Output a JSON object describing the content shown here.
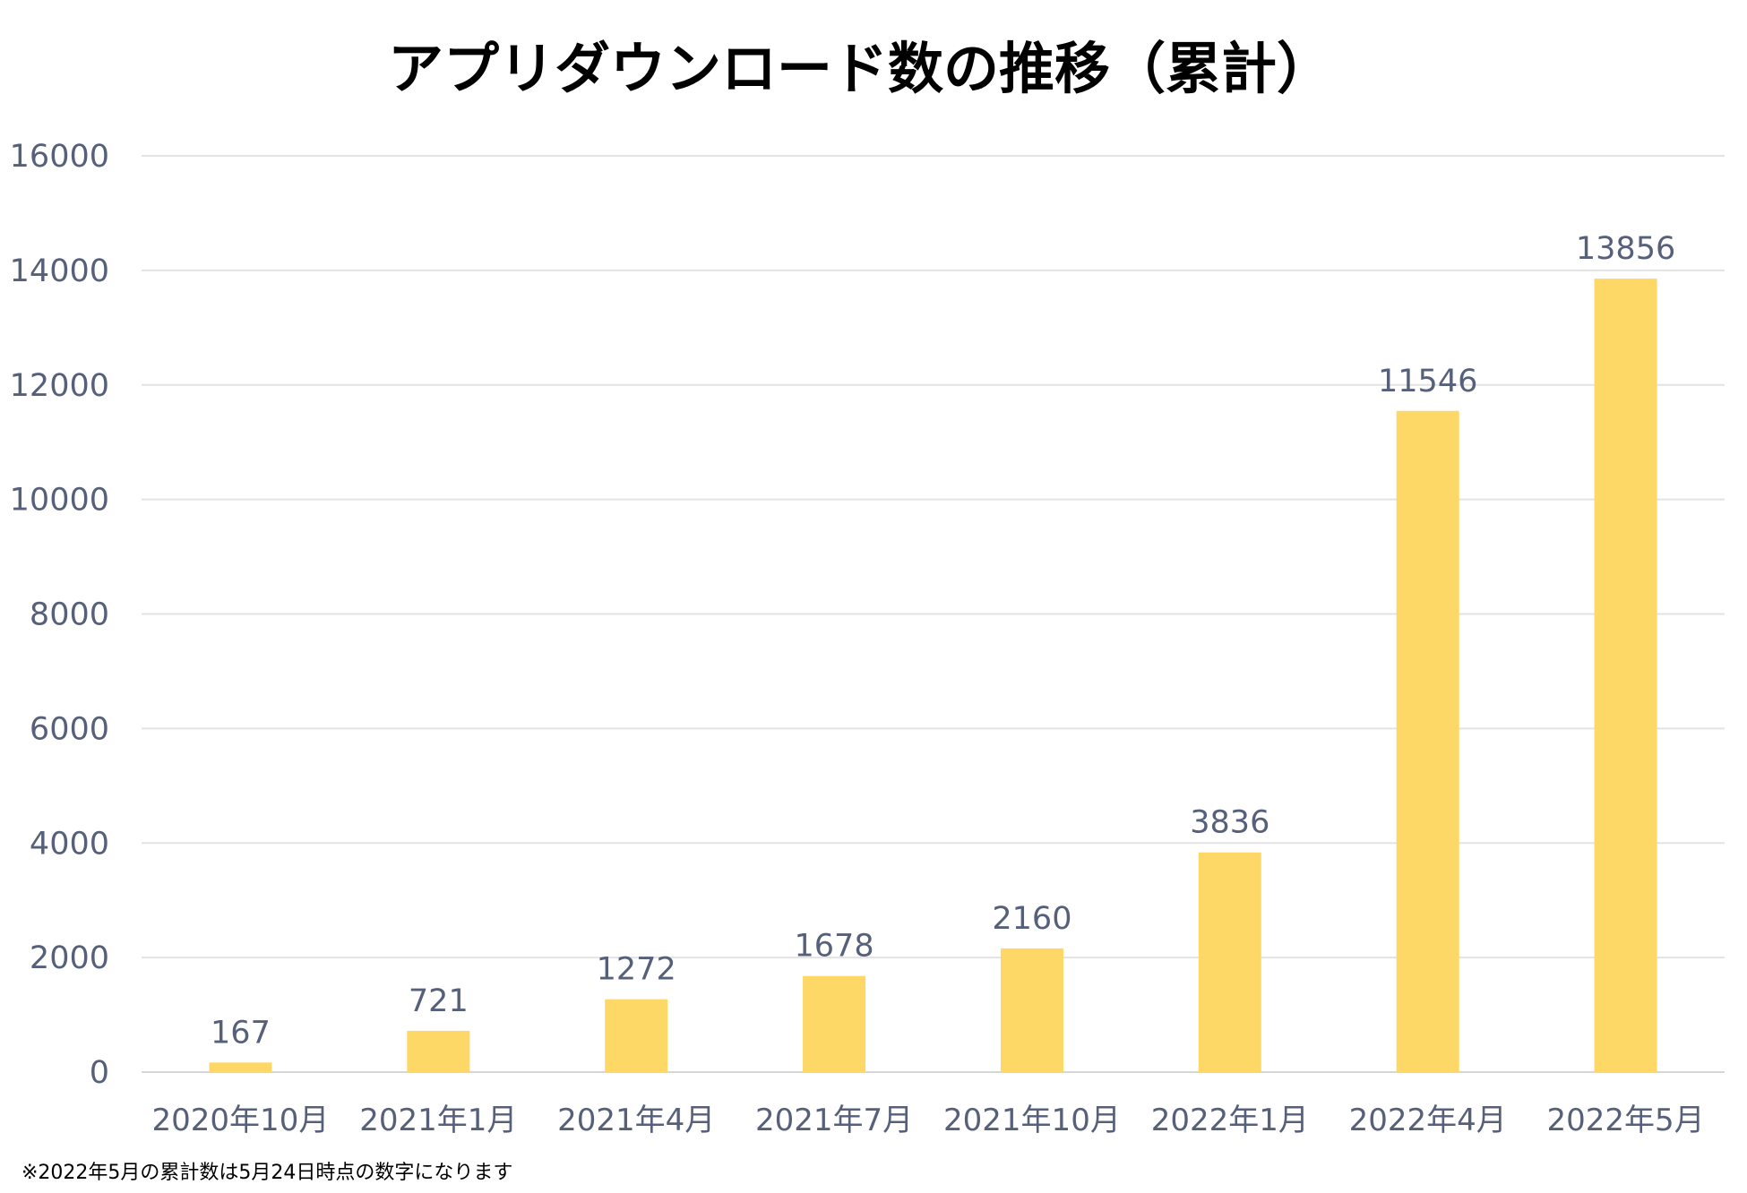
{
  "chart_data": {
    "type": "bar",
    "title": "アプリダウンロード数の推移（累計）",
    "categories": [
      "2020年10月",
      "2021年1月",
      "2021年4月",
      "2021年7月",
      "2021年10月",
      "2022年1月",
      "2022年4月",
      "2022年5月"
    ],
    "values": [
      167,
      721,
      1272,
      1678,
      2160,
      3836,
      11546,
      13856
    ],
    "data_labels": [
      "167",
      "721",
      "1272",
      "1678",
      "2160",
      "3836",
      "11546",
      "13856"
    ],
    "yticks": [
      "0",
      "2000",
      "4000",
      "6000",
      "8000",
      "10000",
      "12000",
      "14000",
      "16000"
    ],
    "ylim": [
      0,
      16000
    ],
    "xlabel": "",
    "ylabel": "",
    "grid": true,
    "bar_color": "#FDD866",
    "label_color": "#56607A"
  },
  "footnote": "※2022年5月の累計数は5月24日時点の数字になります"
}
